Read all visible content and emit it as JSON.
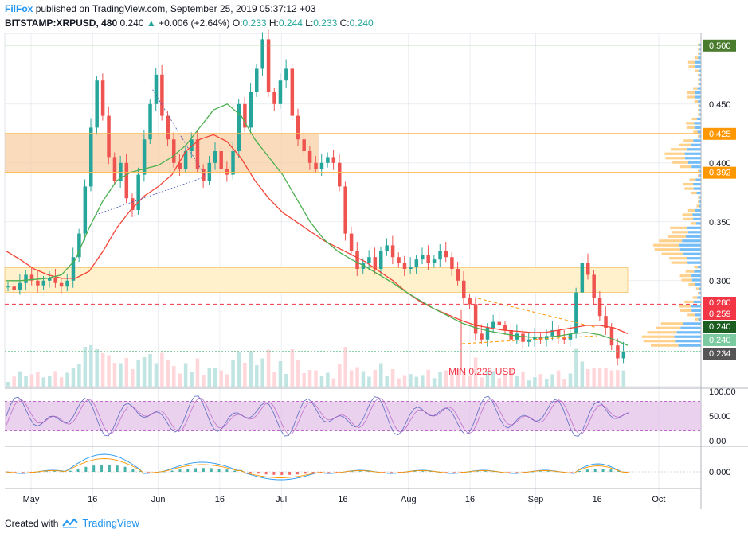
{
  "header": {
    "publisher": "FilFox",
    "published_text": "published on TradingView.com, September 25, 2019 05:37:12 +03",
    "symbol": "BITSTAMP:XRPUSD, 480",
    "last": "0.240",
    "arrow": "▲",
    "change": "+0.006 (+2.64%)",
    "o_label": "O:",
    "o_val": "0.233",
    "h_label": "H:",
    "h_val": "0.244",
    "l_label": "L:",
    "l_val": "0.233",
    "c_label": "C:",
    "c_val": "0.240"
  },
  "footer": {
    "created_with": "Created with",
    "brand": "TradingView"
  },
  "annotation": "MIN 0.225 USD",
  "colors": {
    "up": "#26a69a",
    "down": "#ef5350",
    "ma_fast": "#4caf50",
    "ma_slow": "#f44336",
    "zone_orange": "#f7c99a",
    "zone_yellow": "#fff1cc",
    "stoch_band": "#e1bee7",
    "grid": "#e0e3eb"
  },
  "chart_data": {
    "type": "candlestick",
    "price_axis": {
      "ticks": [
        "0.450",
        "0.400",
        "0.350",
        "0.300"
      ],
      "tick_values": [
        0.45,
        0.4,
        0.35,
        0.3
      ],
      "range": [
        0.21,
        0.51
      ]
    },
    "time_axis": {
      "labels": [
        "May",
        "16",
        "Jun",
        "16",
        "Jul",
        "16",
        "Aug",
        "16",
        "Sep",
        "16",
        "Oct"
      ],
      "day_index": [
        0,
        15,
        31,
        46,
        61,
        76,
        92,
        107,
        123,
        138,
        153
      ]
    },
    "price_labels": [
      {
        "text": "0.500",
        "value": 0.5,
        "color": "#4a7c2e"
      },
      {
        "text": "0.425",
        "value": 0.425,
        "color": "#ff9800"
      },
      {
        "text": "0.392",
        "value": 0.392,
        "color": "#ff9800"
      },
      {
        "text": "0.280",
        "value": 0.28,
        "color": "#f23645"
      },
      {
        "text": "0.259",
        "value": 0.259,
        "color": "#f23645"
      },
      {
        "text": "0.240",
        "value": 0.24,
        "color": "#1b5e20"
      },
      {
        "text": "0.240",
        "value": 0.24,
        "color": "#7ccaa0"
      },
      {
        "text": "0.234",
        "value": 0.234,
        "color": "#555555"
      }
    ],
    "closes": [
      0.295,
      0.292,
      0.298,
      0.305,
      0.3,
      0.296,
      0.3,
      0.302,
      0.298,
      0.295,
      0.3,
      0.32,
      0.34,
      0.38,
      0.43,
      0.47,
      0.44,
      0.405,
      0.385,
      0.4,
      0.37,
      0.36,
      0.39,
      0.42,
      0.45,
      0.475,
      0.44,
      0.42,
      0.4,
      0.395,
      0.41,
      0.42,
      0.395,
      0.385,
      0.4,
      0.41,
      0.395,
      0.39,
      0.41,
      0.45,
      0.43,
      0.46,
      0.48,
      0.505,
      0.46,
      0.45,
      0.47,
      0.48,
      0.44,
      0.42,
      0.41,
      0.4,
      0.395,
      0.4,
      0.405,
      0.4,
      0.38,
      0.34,
      0.325,
      0.31,
      0.315,
      0.32,
      0.31,
      0.325,
      0.33,
      0.32,
      0.315,
      0.31,
      0.312,
      0.318,
      0.322,
      0.315,
      0.318,
      0.325,
      0.32,
      0.31,
      0.3,
      0.285,
      0.28,
      0.255,
      0.25,
      0.26,
      0.265,
      0.262,
      0.258,
      0.25,
      0.255,
      0.248,
      0.25,
      0.252,
      0.25,
      0.253,
      0.258,
      0.252,
      0.25,
      0.255,
      0.29,
      0.315,
      0.305,
      0.285,
      0.27,
      0.26,
      0.245,
      0.234,
      0.24
    ],
    "ma_fast": [
      0.3,
      0.3,
      0.301,
      0.302,
      0.305,
      0.318,
      0.345,
      0.368,
      0.385,
      0.392,
      0.395,
      0.398,
      0.405,
      0.415,
      0.43,
      0.445,
      0.45,
      0.44,
      0.42,
      0.405,
      0.39,
      0.37,
      0.35,
      0.335,
      0.325,
      0.318,
      0.312,
      0.305,
      0.298,
      0.29,
      0.283,
      0.276,
      0.27,
      0.264,
      0.26,
      0.257,
      0.255,
      0.253,
      0.252,
      0.252,
      0.253,
      0.255,
      0.256,
      0.254,
      0.25,
      0.245
    ],
    "ma_slow": [
      0.325,
      0.318,
      0.31,
      0.305,
      0.302,
      0.302,
      0.308,
      0.325,
      0.345,
      0.36,
      0.372,
      0.38,
      0.39,
      0.41,
      0.42,
      0.424,
      0.418,
      0.404,
      0.385,
      0.37,
      0.358,
      0.35,
      0.342,
      0.334,
      0.328,
      0.322,
      0.316,
      0.308,
      0.3,
      0.29,
      0.282,
      0.276,
      0.271,
      0.266,
      0.262,
      0.26,
      0.258,
      0.257,
      0.256,
      0.256,
      0.258,
      0.26,
      0.262,
      0.262,
      0.26,
      0.255
    ],
    "stoch": {
      "ticks": [
        "100.00",
        "50.00",
        "0.00"
      ],
      "tick_values": [
        100,
        50,
        0
      ],
      "band": [
        80,
        20
      ]
    },
    "macd": {
      "ticks": [
        "0.000"
      ],
      "tick_values": [
        0
      ]
    }
  }
}
